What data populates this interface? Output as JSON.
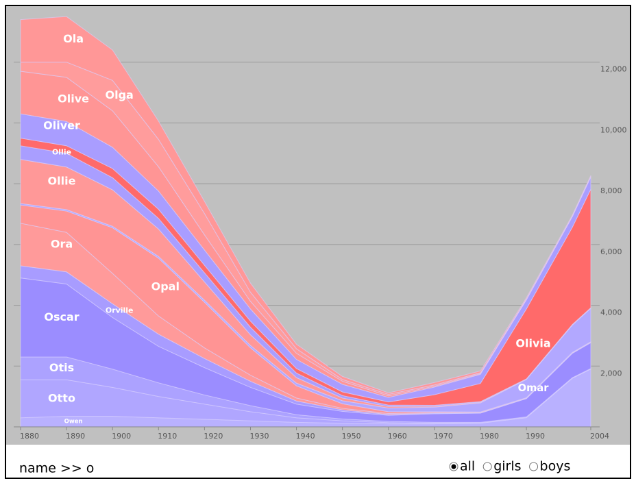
{
  "chart_data": {
    "type": "stacked-area",
    "x": [
      1880,
      1890,
      1900,
      1910,
      1920,
      1930,
      1940,
      1950,
      1960,
      1970,
      1980,
      1990,
      2000,
      2004
    ],
    "xlim": [
      1880,
      2004
    ],
    "xticks": [
      1880,
      1890,
      1900,
      1910,
      1920,
      1930,
      1940,
      1950,
      1960,
      1970,
      1980,
      1990,
      2004
    ],
    "ylim": [
      0,
      14000
    ],
    "yticks": [
      {
        "value": 2000,
        "label": "2,000"
      },
      {
        "value": 4000,
        "label": "4,000"
      },
      {
        "value": 6000,
        "label": "6,000"
      },
      {
        "value": 8000,
        "label": "8,000"
      },
      {
        "value": 10000,
        "label": "10,000"
      },
      {
        "value": 12000,
        "label": "12,000"
      }
    ],
    "grid": true,
    "series": [
      {
        "name": "Owen",
        "color": "#b9b1ff",
        "values": [
          300,
          350,
          350,
          300,
          250,
          200,
          150,
          120,
          100,
          100,
          120,
          300,
          1600,
          1900
        ]
      },
      {
        "name": "Otto",
        "color": "#b0a6ff",
        "values": [
          1250,
          1200,
          950,
          700,
          500,
          300,
          150,
          80,
          40,
          20,
          10,
          10,
          10,
          10
        ]
      },
      {
        "name": "Otis",
        "color": "#aca2ff",
        "values": [
          750,
          750,
          600,
          450,
          300,
          200,
          100,
          60,
          40,
          30,
          20,
          20,
          10,
          10
        ]
      },
      {
        "name": "Oscar",
        "color": "#9b8dff",
        "values": [
          2600,
          2400,
          1700,
          1200,
          900,
          600,
          350,
          250,
          200,
          280,
          300,
          600,
          800,
          850
        ]
      },
      {
        "name": "Orville",
        "color": "#a89cff",
        "values": [
          400,
          400,
          450,
          400,
          300,
          200,
          100,
          50,
          30,
          20,
          10,
          10,
          10,
          10
        ]
      },
      {
        "name": "Ora",
        "color": "#ff9a9a",
        "values": [
          1400,
          1300,
          1000,
          600,
          350,
          200,
          100,
          50,
          30,
          20,
          10,
          10,
          10,
          10
        ]
      },
      {
        "name": "Opal",
        "color": "#ff9494",
        "values": [
          600,
          700,
          1500,
          1900,
          1500,
          900,
          400,
          150,
          60,
          30,
          20,
          10,
          10,
          10
        ]
      },
      {
        "name": "Omar",
        "color": "#b2a8ff",
        "values": [
          50,
          50,
          50,
          60,
          70,
          80,
          90,
          100,
          120,
          150,
          300,
          600,
          900,
          1100
        ]
      },
      {
        "name": "Ollie",
        "color": "#ff9898",
        "values": [
          1450,
          1400,
          1200,
          900,
          600,
          350,
          180,
          90,
          50,
          30,
          20,
          10,
          10,
          10
        ]
      },
      {
        "name": "Ollie",
        "color": "#a99eff",
        "values": [
          450,
          450,
          400,
          350,
          300,
          250,
          150,
          80,
          50,
          30,
          20,
          10,
          10,
          10
        ]
      },
      {
        "name": "Olivia",
        "color": "#ff6a6a",
        "values": [
          250,
          250,
          300,
          300,
          250,
          200,
          150,
          120,
          100,
          350,
          600,
          2300,
          3200,
          3900
        ]
      },
      {
        "name": "Oliver",
        "color": "#a99dff",
        "values": [
          800,
          800,
          700,
          600,
          500,
          400,
          300,
          250,
          150,
          250,
          300,
          300,
          350,
          400
        ]
      },
      {
        "name": "Olive",
        "color": "#ff9595",
        "values": [
          1400,
          1450,
          1200,
          800,
          500,
          250,
          200,
          100,
          50,
          30,
          20,
          10,
          10,
          10
        ]
      },
      {
        "name": "Olga",
        "color": "#ff9c9c",
        "values": [
          300,
          500,
          1000,
          900,
          700,
          300,
          150,
          60,
          50,
          40,
          30,
          20,
          20,
          20
        ]
      },
      {
        "name": "Ola",
        "color": "#ff9797",
        "values": [
          1400,
          1500,
          1000,
          600,
          400,
          300,
          150,
          100,
          50,
          80,
          60,
          40,
          20,
          20
        ]
      }
    ]
  },
  "ui": {
    "query": "name >> o",
    "filters": [
      "all",
      "girls",
      "boys"
    ],
    "selected": "all"
  }
}
